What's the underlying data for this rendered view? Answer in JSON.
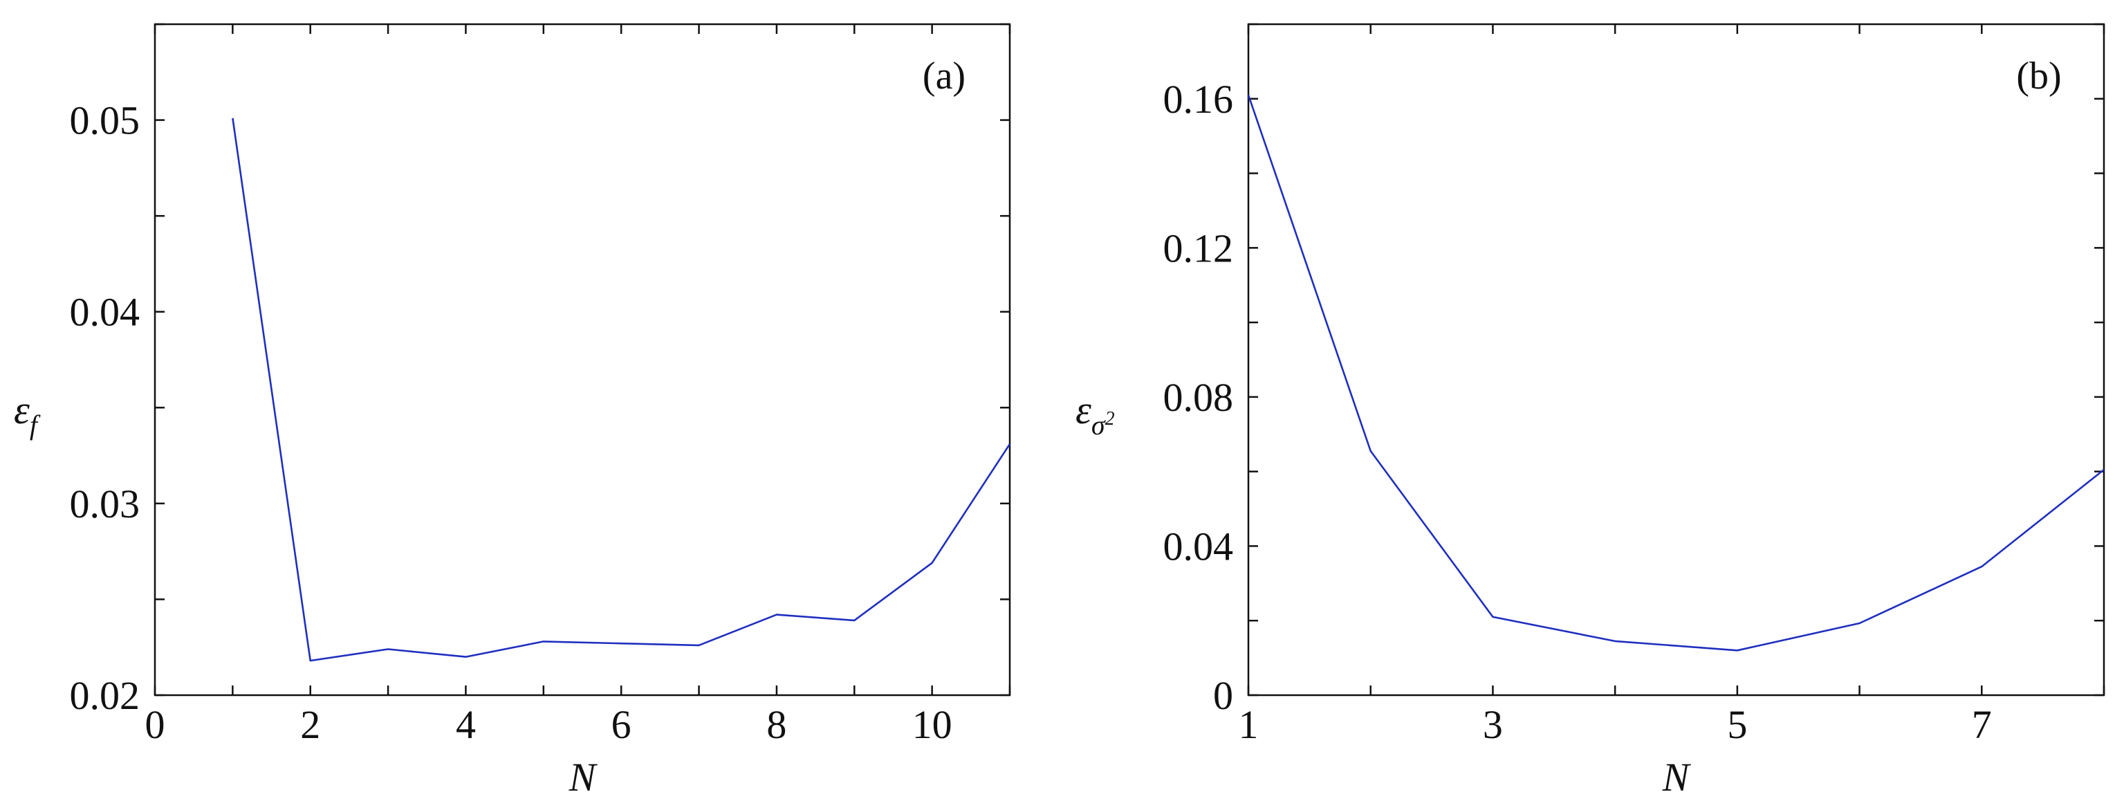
{
  "chart_data": [
    {
      "type": "line",
      "panel_label": "(a)",
      "xlabel": "N",
      "ylabel": "ε_f",
      "xlim": [
        0,
        11
      ],
      "ylim": [
        0.02,
        0.055
      ],
      "x_ticks": [
        "0",
        "2",
        "4",
        "6",
        "8",
        "10"
      ],
      "x_tick_values": [
        0,
        2,
        4,
        6,
        8,
        10
      ],
      "y_ticks": [
        "0.02",
        "0.03",
        "0.04",
        "0.05"
      ],
      "y_tick_values": [
        0.02,
        0.03,
        0.04,
        0.05
      ],
      "grid": false,
      "color": "#1f2fbf",
      "x": [
        1,
        2,
        3,
        4,
        5,
        6,
        7,
        8,
        9,
        10,
        11
      ],
      "y": [
        0.0501,
        0.0218,
        0.0224,
        0.022,
        0.0228,
        0.0227,
        0.0226,
        0.0242,
        0.0239,
        0.0269,
        0.0331
      ]
    },
    {
      "type": "line",
      "panel_label": "(b)",
      "xlabel": "N",
      "ylabel": "ε_σ²",
      "xlim": [
        1,
        8
      ],
      "ylim": [
        0,
        0.18
      ],
      "x_ticks": [
        "1",
        "3",
        "5",
        "7"
      ],
      "x_tick_values": [
        1,
        3,
        5,
        7
      ],
      "y_ticks": [
        "0",
        "0.04",
        "0.08",
        "0.12",
        "0.16"
      ],
      "y_tick_values": [
        0,
        0.04,
        0.08,
        0.12,
        0.16
      ],
      "grid": false,
      "color": "#1f2fbf",
      "x": [
        1,
        2,
        3,
        4,
        5,
        6,
        7,
        8
      ],
      "y": [
        0.161,
        0.0655,
        0.021,
        0.0145,
        0.012,
        0.0193,
        0.0345,
        0.0605
      ]
    }
  ]
}
